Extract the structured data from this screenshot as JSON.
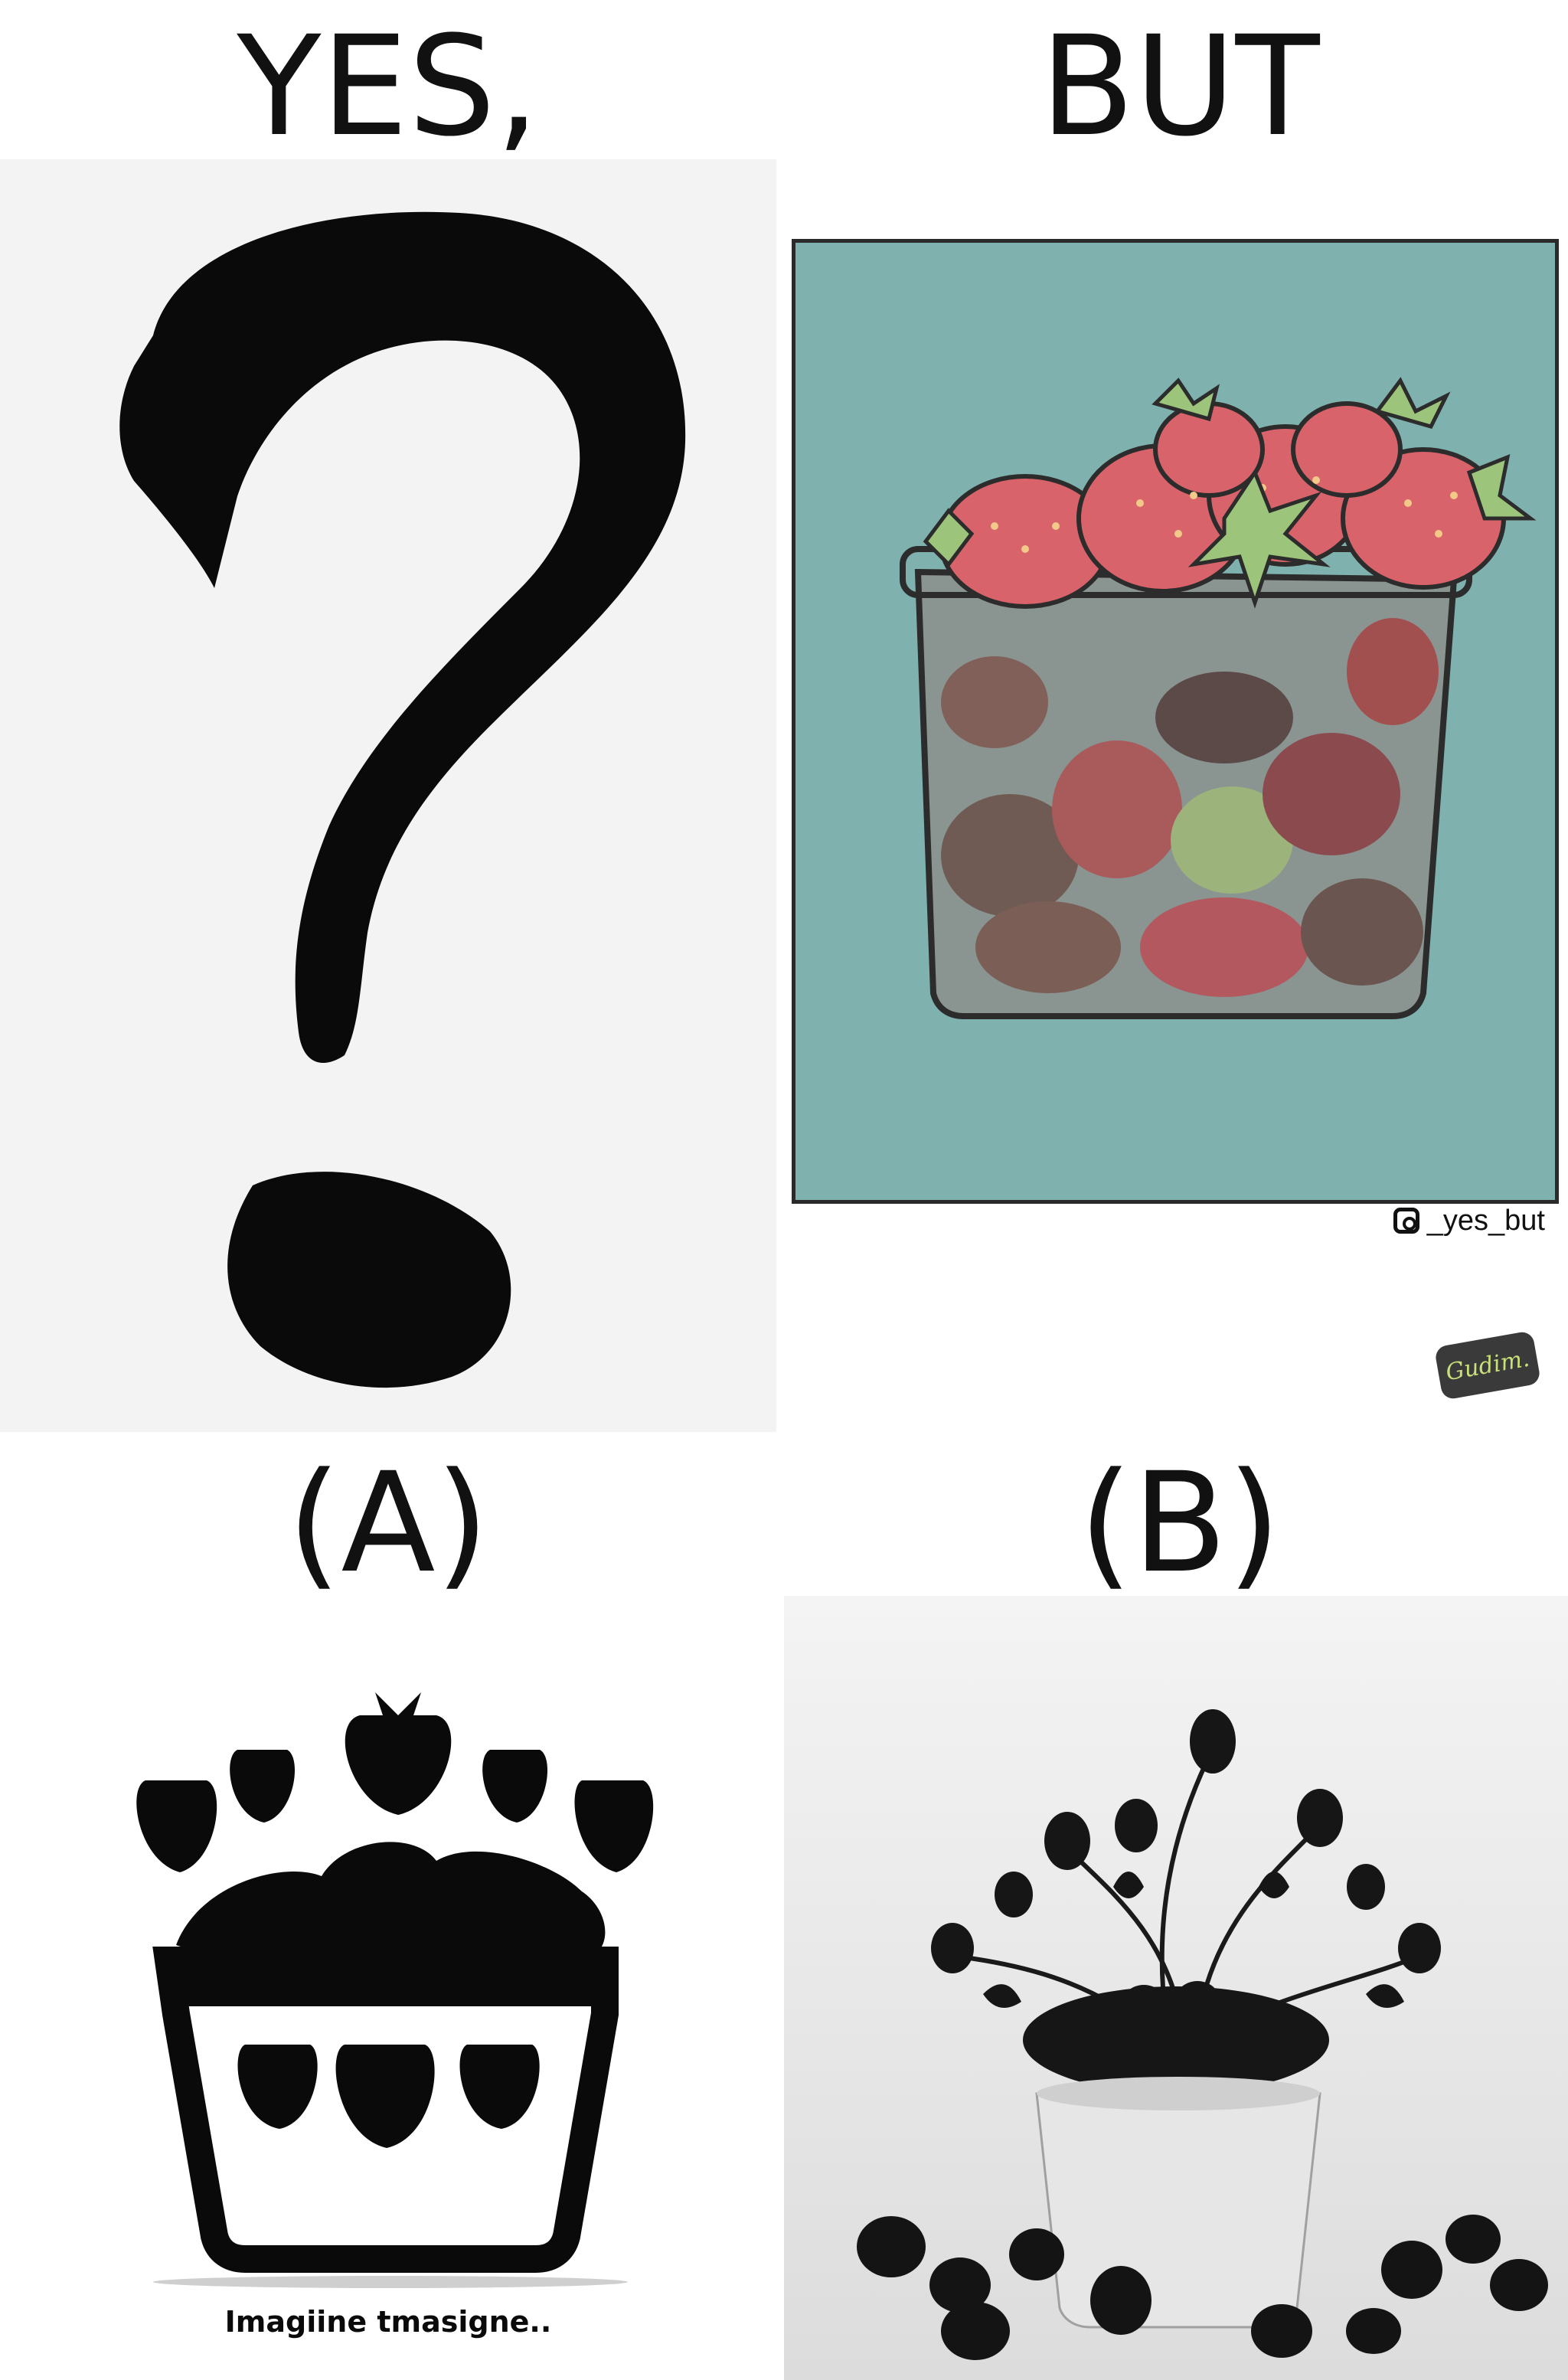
{
  "top_left_heading": "YES,",
  "top_right_heading": "BUT",
  "bottom_left_label": "(A)",
  "bottom_right_label": "(B)",
  "credit_handle": "_yes_but",
  "signature": "Gudim.",
  "caption_a": "Imagiine tmasigne..",
  "icons": {
    "question": "question-mark-icon",
    "instagram": "instagram-icon",
    "signature_badge": "signature-badge"
  },
  "colors": {
    "teal_bg": "#7fb2ae",
    "strawberry": "#d9636a",
    "leaf": "#9cc47b",
    "rotten": "#6f5b53",
    "ink": "#111111"
  }
}
